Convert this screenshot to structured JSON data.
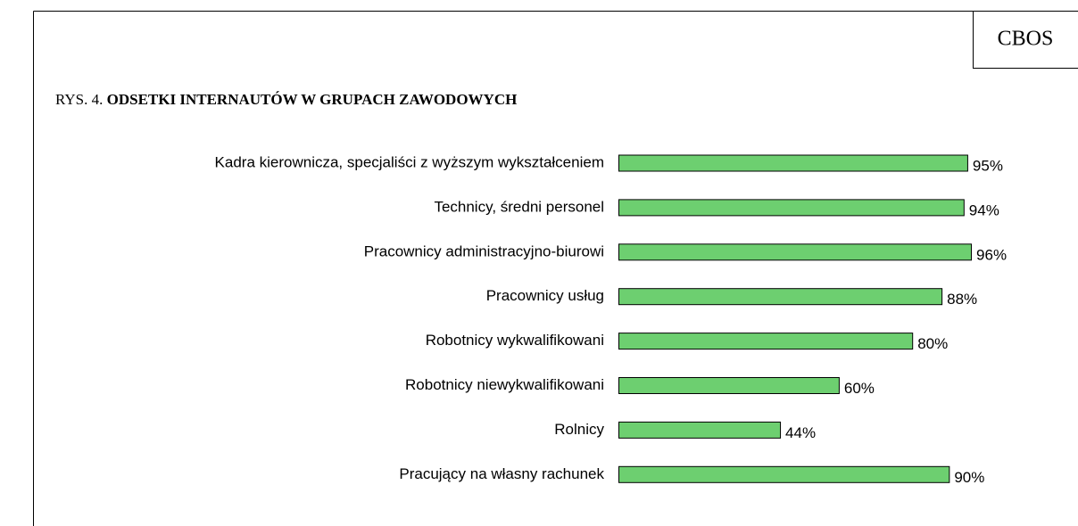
{
  "chart_data": {
    "type": "bar",
    "orientation": "horizontal",
    "badge": "CBOS",
    "title_prefix": "RYS. 4.",
    "title": "ODSETKI INTERNAUTÓW W GRUPACH ZAWODOWYCH",
    "categories": [
      "Kadra kierownicza, specjaliści z wyższym wykształceniem",
      "Technicy, średni personel",
      "Pracownicy administracyjno-biurowi",
      "Pracownicy usług",
      "Robotnicy wykwalifikowani",
      "Robotnicy niewykwalifikowani",
      "Rolnicy",
      "Pracujący na własny rachunek"
    ],
    "values": [
      95,
      94,
      96,
      88,
      80,
      60,
      44,
      90
    ],
    "value_labels": [
      "95%",
      "94%",
      "96%",
      "88%",
      "80%",
      "60%",
      "44%",
      "90%"
    ],
    "color": "#6dcf70"
  }
}
